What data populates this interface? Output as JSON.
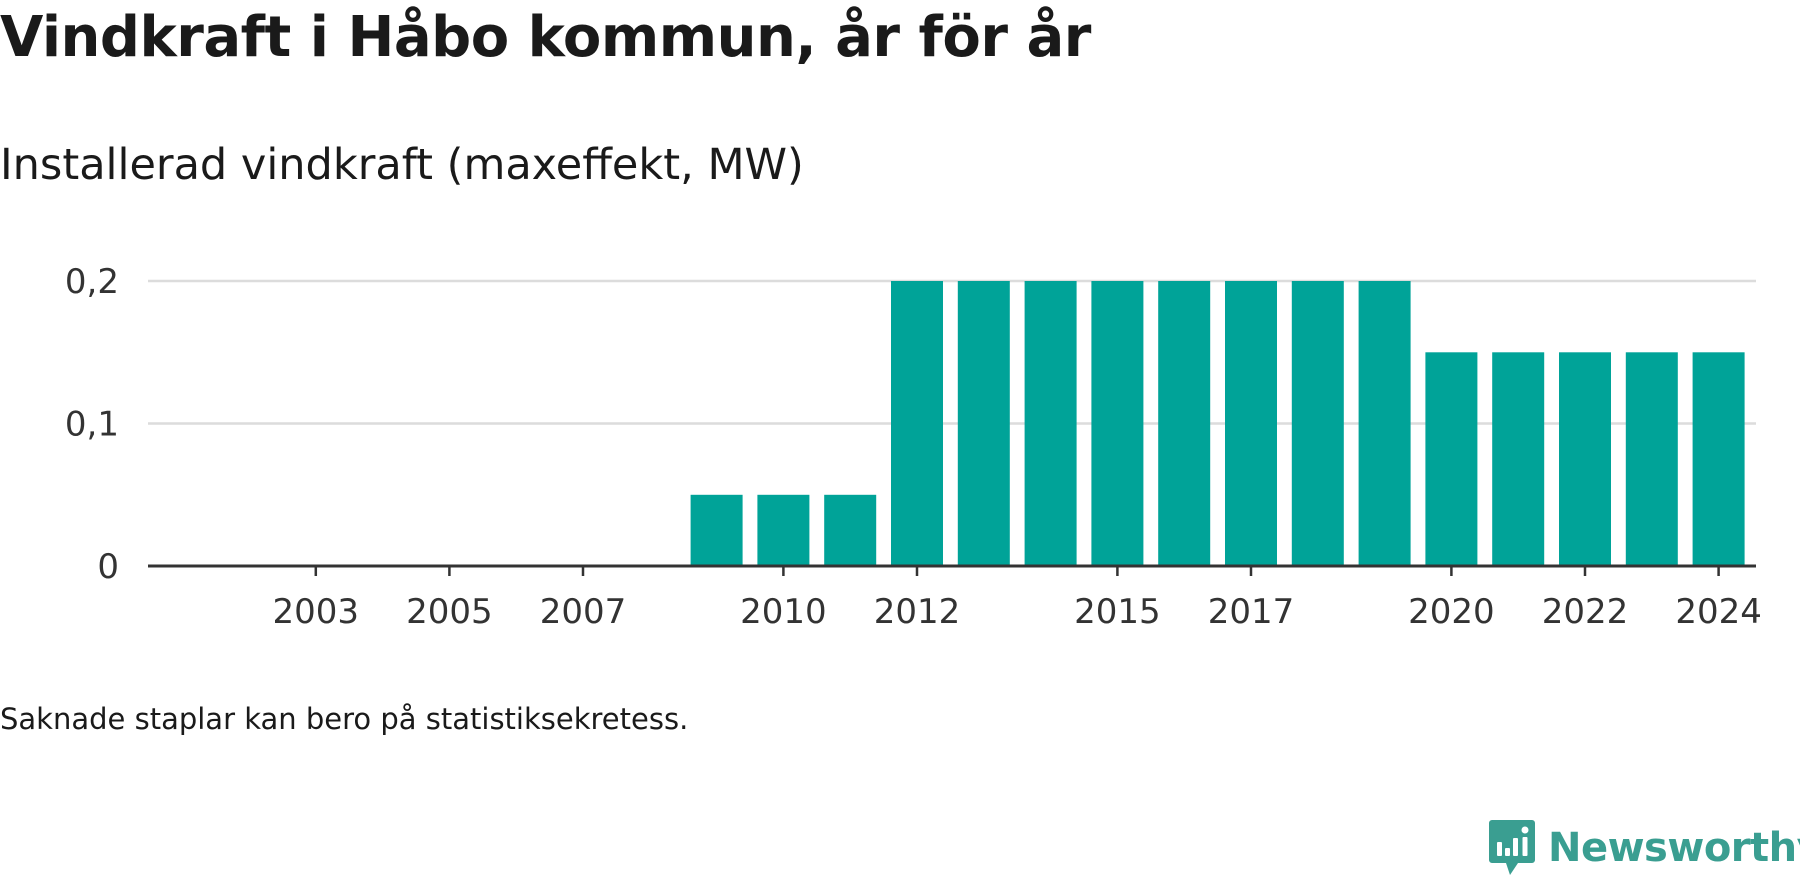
{
  "header": {
    "title": "Vindkraft i Håbo kommun, år för år",
    "subtitle": "Installerad vindkraft (maxeffekt, MW)"
  },
  "footnote": "Saknade staplar kan bero på statistiksekretess.",
  "brand": {
    "name": "Newsworthy",
    "icon": "newsworthy-logo-icon",
    "color": "#3a9e91"
  },
  "colors": {
    "bar": "#00a398",
    "grid": "#dcdcdc",
    "axis": "#333333",
    "text": "#333333"
  },
  "chart_data": {
    "type": "bar",
    "title": "Vindkraft i Håbo kommun, år för år",
    "subtitle": "Installerad vindkraft (maxeffekt, MW)",
    "categories": [
      "2002",
      "2003",
      "2004",
      "2005",
      "2006",
      "2007",
      "2008",
      "2009",
      "2010",
      "2011",
      "2012",
      "2013",
      "2014",
      "2015",
      "2016",
      "2017",
      "2018",
      "2019",
      "2020",
      "2021",
      "2022",
      "2023",
      "2024"
    ],
    "values": [
      0,
      0,
      0,
      0,
      0,
      0,
      0,
      0.05,
      0.05,
      0.05,
      0.2,
      0.2,
      0.2,
      0.2,
      0.2,
      0.2,
      0.2,
      0.2,
      0.15,
      0.15,
      0.15,
      0.15,
      0.15
    ],
    "x_tick_labels": [
      "2003",
      "2005",
      "2007",
      "2010",
      "2012",
      "2015",
      "2017",
      "2020",
      "2022",
      "2024"
    ],
    "y_ticks": [
      {
        "value": 0,
        "label": "0"
      },
      {
        "value": 0.1,
        "label": "0,1"
      },
      {
        "value": 0.2,
        "label": "0,2"
      }
    ],
    "ylim": [
      0,
      0.2
    ],
    "xlabel": "",
    "ylabel": "",
    "grid": true,
    "legend": "none"
  }
}
